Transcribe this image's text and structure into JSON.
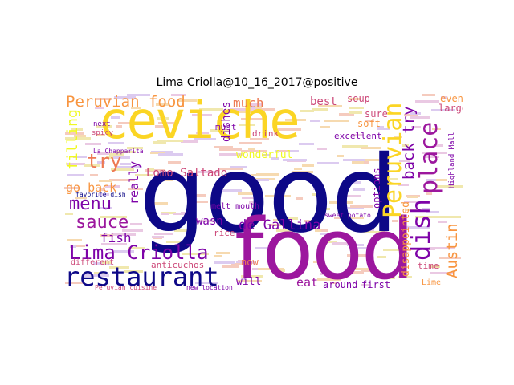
{
  "title": "Lima Criolla@10_16_2017@positive",
  "colors": {
    "indigo": "#0d0887",
    "purple": "#7e03a8",
    "magenta": "#9c179e",
    "pink": "#cc4778",
    "orange": "#ed7953",
    "amber": "#f89540",
    "gold": "#fbd524",
    "yellow": "#f0f921"
  },
  "words": {
    "good": "good",
    "food": "food",
    "ceviche": "ceviche",
    "restaurant": "restaurant",
    "lima_criolla": "Lima Criolla",
    "peruvian_food": "Peruvian food",
    "dish": "dish",
    "place": "place",
    "peruvian": "Peruvian",
    "sauce": "sauce",
    "menu": "menu",
    "try": "try",
    "go_back": "go back",
    "fish": "fish",
    "de_gallina": "de Gallina",
    "lomo_saltado": "Lomo Saltado",
    "really": "really",
    "much": "much",
    "best": "best",
    "soup": "soup",
    "back_try": "back try",
    "austin": "Austin",
    "disappointed": "disappointed",
    "around": "around",
    "first": "first",
    "eat": "eat",
    "will": "will",
    "now": "now",
    "wasn": "wasn",
    "rice": "rice",
    "anticuchos": "anticuchos",
    "different": "different",
    "filling": "filling",
    "dishes": "dishes",
    "drink": "drink",
    "sure": "sure",
    "soft": "soft",
    "excellent": "excellent",
    "options": "options",
    "must": "must",
    "larger": "larger",
    "even": "even",
    "next": "next",
    "spicy": "spicy",
    "la_chapparita": "La Chapparita",
    "wonderful": "wonderful",
    "melt_mouth": "melt mouth",
    "favorite_dish": "favorite dish",
    "sweet_potato": "sweet potato",
    "highland_mall": "Highland Mall",
    "lime": "Lime",
    "time": "time",
    "peruvian_cuisine": "Peruvian cuisine",
    "new_location": "new location"
  }
}
